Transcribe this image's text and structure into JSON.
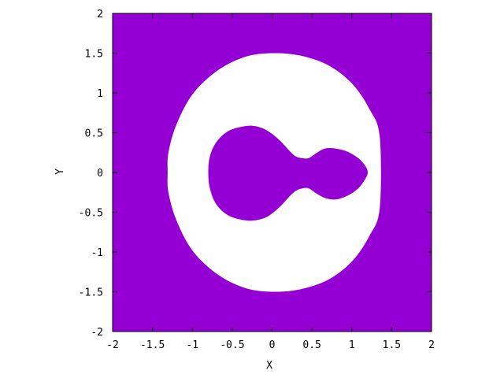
{
  "chart_data": {
    "type": "heatmap",
    "title": "",
    "xlabel": "X",
    "ylabel": "Y",
    "xlim": [
      -2,
      2
    ],
    "ylim": [
      -2,
      2
    ],
    "xticks": [
      "-2",
      "-1.5",
      "-1",
      "-0.5",
      "0",
      "0.5",
      "1",
      "1.5",
      "2"
    ],
    "yticks": [
      "-2",
      "-1.5",
      "-1",
      "-0.5",
      "0",
      "0.5",
      "1",
      "1.5",
      "2"
    ],
    "grid": false,
    "legend": "none",
    "fill_color": "#9400d3",
    "hole_color": "#ffffff",
    "regions": [
      {
        "kind": "outer-boundary",
        "points": [
          [
            0,
            1.5
          ],
          [
            0.35,
            1.47
          ],
          [
            0.7,
            1.35
          ],
          [
            1,
            1.12
          ],
          [
            1.22,
            0.8
          ],
          [
            1.35,
            0.45
          ],
          [
            1.35,
            -0.45
          ],
          [
            1.22,
            -0.8
          ],
          [
            1,
            -1.12
          ],
          [
            0.7,
            -1.35
          ],
          [
            0.35,
            -1.47
          ],
          [
            0,
            -1.5
          ],
          [
            -0.35,
            -1.45
          ],
          [
            -0.7,
            -1.27
          ],
          [
            -1,
            -0.98
          ],
          [
            -1.2,
            -0.6
          ],
          [
            -1.3,
            -0.25
          ],
          [
            -1.31,
            0
          ],
          [
            -1.3,
            0.25
          ],
          [
            -1.2,
            0.6
          ],
          [
            -1,
            0.98
          ],
          [
            -0.7,
            1.27
          ],
          [
            -0.35,
            1.45
          ]
        ]
      },
      {
        "kind": "inner-island",
        "points": [
          [
            -0.8,
            0
          ],
          [
            -0.78,
            0.2
          ],
          [
            -0.7,
            0.38
          ],
          [
            -0.55,
            0.52
          ],
          [
            -0.35,
            0.58
          ],
          [
            -0.2,
            0.58
          ],
          [
            -0.05,
            0.52
          ],
          [
            0.1,
            0.4
          ],
          [
            0.22,
            0.27
          ],
          [
            0.3,
            0.2
          ],
          [
            0.38,
            0.18
          ],
          [
            0.46,
            0.18
          ],
          [
            0.55,
            0.24
          ],
          [
            0.66,
            0.3
          ],
          [
            0.8,
            0.3
          ],
          [
            0.95,
            0.26
          ],
          [
            1.08,
            0.18
          ],
          [
            1.17,
            0.08
          ],
          [
            1.2,
            0
          ],
          [
            1.17,
            -0.08
          ],
          [
            1.08,
            -0.2
          ],
          [
            0.95,
            -0.29
          ],
          [
            0.8,
            -0.34
          ],
          [
            0.66,
            -0.32
          ],
          [
            0.55,
            -0.26
          ],
          [
            0.46,
            -0.2
          ],
          [
            0.38,
            -0.2
          ],
          [
            0.3,
            -0.23
          ],
          [
            0.22,
            -0.3
          ],
          [
            0.1,
            -0.43
          ],
          [
            -0.05,
            -0.55
          ],
          [
            -0.2,
            -0.6
          ],
          [
            -0.35,
            -0.6
          ],
          [
            -0.55,
            -0.54
          ],
          [
            -0.7,
            -0.4
          ],
          [
            -0.78,
            -0.2
          ]
        ]
      }
    ]
  }
}
